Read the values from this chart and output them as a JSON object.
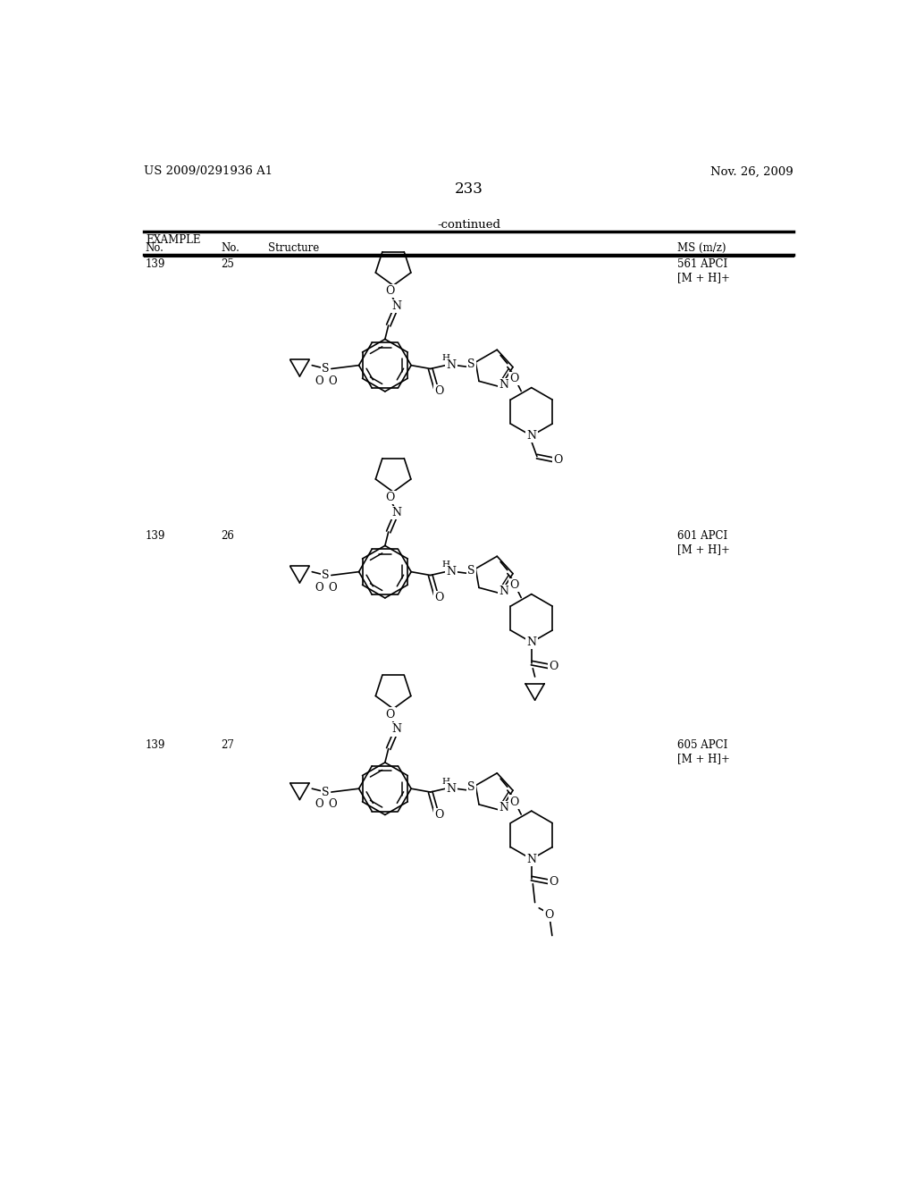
{
  "page_number": "233",
  "left_header": "US 2009/0291936 A1",
  "right_header": "Nov. 26, 2009",
  "table_title": "-continued",
  "rows": [
    {
      "example": "139",
      "no": "25",
      "ms": "561 APCI\n[M + H]+"
    },
    {
      "example": "139",
      "no": "26",
      "ms": "601 APCI\n[M + H]+"
    },
    {
      "example": "139",
      "no": "27",
      "ms": "605 APCI\n[M + H]+"
    }
  ],
  "background_color": "#ffffff",
  "text_color": "#000000"
}
